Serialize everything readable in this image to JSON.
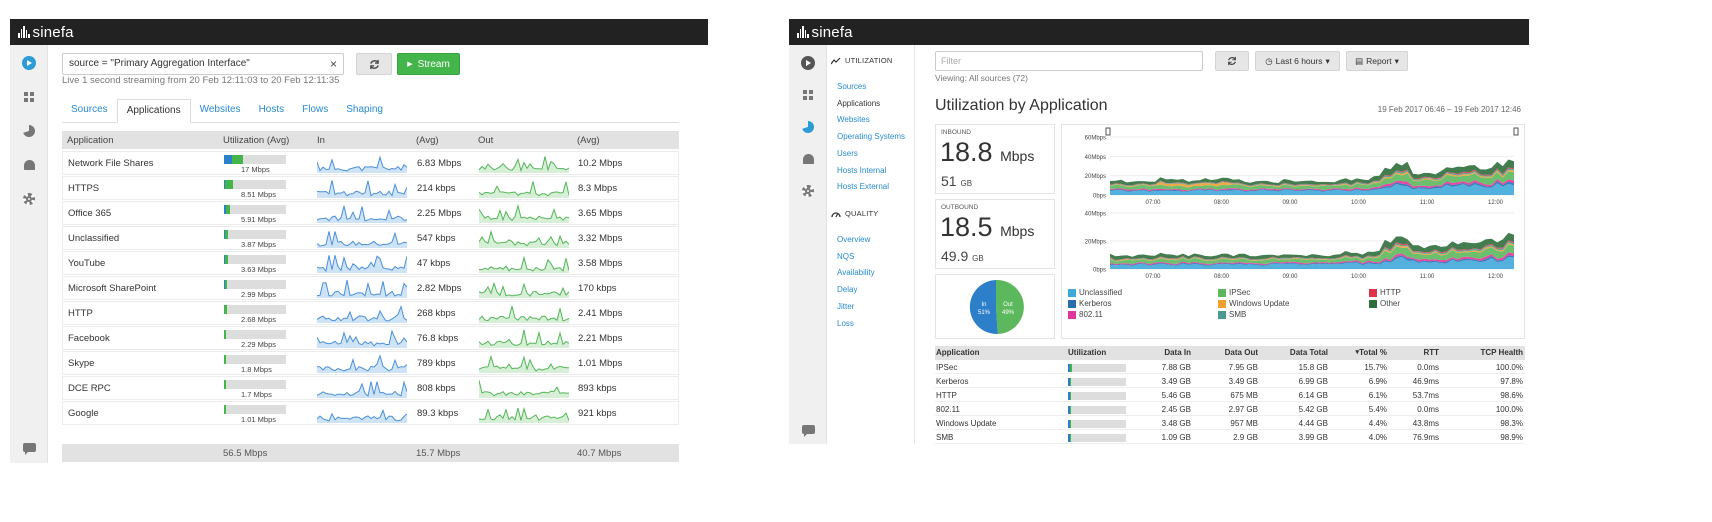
{
  "left": {
    "logo": "sinefa",
    "search_value": "source = \"Primary Aggregation Interface\"",
    "clear_label": "×",
    "stream_label": "Stream",
    "status": "Live 1 second streaming from 20 Feb 12:11:03 to 20 Feb 12:11:35",
    "tabs": [
      "Sources",
      "Applications",
      "Websites",
      "Hosts",
      "Flows",
      "Shaping"
    ],
    "active_tab": "Applications",
    "columns": [
      "Application",
      "Utilization (Avg)",
      "In",
      "(Avg)",
      "Out",
      "(Avg)"
    ],
    "rows": [
      {
        "app": "Network File Shares",
        "util": "17 Mbps",
        "util_frac": 0.3,
        "in_avg": "6.83 Mbps",
        "out_avg": "10.2 Mbps"
      },
      {
        "app": "HTTPS",
        "util": "8.51 Mbps",
        "util_frac": 0.15,
        "in_avg": "214 kbps",
        "out_avg": "8.3 Mbps"
      },
      {
        "app": "Office 365",
        "util": "5.91 Mbps",
        "util_frac": 0.1,
        "in_avg": "2.25 Mbps",
        "out_avg": "3.65 Mbps"
      },
      {
        "app": "Unclassified",
        "util": "3.87 Mbps",
        "util_frac": 0.07,
        "in_avg": "547 kbps",
        "out_avg": "3.32 Mbps"
      },
      {
        "app": "YouTube",
        "util": "3.63 Mbps",
        "util_frac": 0.06,
        "in_avg": "47 kbps",
        "out_avg": "3.58 Mbps"
      },
      {
        "app": "Microsoft SharePoint",
        "util": "2.99 Mbps",
        "util_frac": 0.05,
        "in_avg": "2.82 Mbps",
        "out_avg": "170 kbps"
      },
      {
        "app": "HTTP",
        "util": "2.68 Mbps",
        "util_frac": 0.05,
        "in_avg": "268 kbps",
        "out_avg": "2.41 Mbps"
      },
      {
        "app": "Facebook",
        "util": "2.29 Mbps",
        "util_frac": 0.04,
        "in_avg": "76.8 kbps",
        "out_avg": "2.21 Mbps"
      },
      {
        "app": "Skype",
        "util": "1.8 Mbps",
        "util_frac": 0.03,
        "in_avg": "789 kbps",
        "out_avg": "1.01 Mbps"
      },
      {
        "app": "DCE RPC",
        "util": "1.7 Mbps",
        "util_frac": 0.03,
        "in_avg": "808 kbps",
        "out_avg": "893 kbps"
      },
      {
        "app": "Google",
        "util": "1.01 Mbps",
        "util_frac": 0.02,
        "in_avg": "89.3 kbps",
        "out_avg": "921 kbps"
      }
    ],
    "totals": {
      "util": "56.5 Mbps",
      "in": "15.7 Mbps",
      "out": "40.7 Mbps"
    }
  },
  "right": {
    "logo": "sinefa",
    "utilization_label": "UTILIZATION",
    "util_items": [
      "Sources",
      "Applications",
      "Websites",
      "Operating Systems",
      "Users",
      "Hosts Internal",
      "Hosts External"
    ],
    "active_item": "Applications",
    "quality_label": "QUALITY",
    "quality_items": [
      "Overview",
      "NQS",
      "Availability",
      "Delay",
      "Jitter",
      "Loss"
    ],
    "filter_placeholder": "Filter",
    "time_label": "Last 6 hours",
    "report_label": "Report",
    "viewing": "Viewing: All sources (72)",
    "title": "Utilization by Application",
    "range": "19 Feb 2017 06:46 – 19 Feb 2017 12:46",
    "inbound": {
      "label": "INBOUND",
      "rate": "18.8",
      "rate_unit": "Mbps",
      "volume": "51",
      "volume_unit": "GB"
    },
    "outbound": {
      "label": "OUTBOUND",
      "rate": "18.5",
      "rate_unit": "Mbps",
      "volume": "49.9",
      "volume_unit": "GB"
    },
    "pie": {
      "in_label": "In",
      "in_pct": "51%",
      "out_label": "Out",
      "out_pct": "49%"
    },
    "chart": {
      "in_ticks": [
        "60Mbps",
        "40Mbps",
        "20Mbps",
        "0bps"
      ],
      "out_ticks": [
        "40Mbps",
        "20Mbps",
        "0bps"
      ],
      "x_ticks": [
        "07:00",
        "08:00",
        "09:00",
        "10:00",
        "11:00",
        "12:00"
      ]
    },
    "legend": [
      {
        "name": "Unclassified",
        "color": "#3fa9d9"
      },
      {
        "name": "IPSec",
        "color": "#5cb85c"
      },
      {
        "name": "HTTP",
        "color": "#e0334a"
      },
      {
        "name": "Kerberos",
        "color": "#2b6bb0"
      },
      {
        "name": "Windows Update",
        "color": "#f0a030"
      },
      {
        "name": "Other",
        "color": "#2e6e3c"
      },
      {
        "name": "802.11",
        "color": "#e0359a"
      },
      {
        "name": "SMB",
        "color": "#4a9a90"
      }
    ],
    "columns": [
      "Application",
      "Utilization",
      "Data In",
      "Data Out",
      "Data Total",
      "Total %",
      "RTT",
      "TCP Health"
    ],
    "sort_marker": "▾",
    "rows": [
      {
        "app": "IPSec",
        "util_frac": 0.157,
        "data_in": "7.88 GB",
        "data_out": "7.95 GB",
        "total": "15.8 GB",
        "pct": "15.7%",
        "rtt": "0.0ms",
        "tcp": "100.0%"
      },
      {
        "app": "Kerberos",
        "util_frac": 0.069,
        "data_in": "3.49 GB",
        "data_out": "3.49 GB",
        "total": "6.99 GB",
        "pct": "6.9%",
        "rtt": "46.9ms",
        "tcp": "97.8%"
      },
      {
        "app": "HTTP",
        "util_frac": 0.061,
        "data_in": "5.46 GB",
        "data_out": "675 MB",
        "total": "6.14 GB",
        "pct": "6.1%",
        "rtt": "53.7ms",
        "tcp": "98.6%"
      },
      {
        "app": "802.11",
        "util_frac": 0.054,
        "data_in": "2.45 GB",
        "data_out": "2.97 GB",
        "total": "5.42 GB",
        "pct": "5.4%",
        "rtt": "0.0ms",
        "tcp": "100.0%"
      },
      {
        "app": "Windows Update",
        "util_frac": 0.044,
        "data_in": "3.48 GB",
        "data_out": "957 MB",
        "total": "4.44 GB",
        "pct": "4.4%",
        "rtt": "43.8ms",
        "tcp": "98.3%"
      },
      {
        "app": "SMB",
        "util_frac": 0.04,
        "data_in": "1.09 GB",
        "data_out": "2.9 GB",
        "total": "3.99 GB",
        "pct": "4.0%",
        "rtt": "76.9ms",
        "tcp": "98.9%"
      }
    ]
  }
}
